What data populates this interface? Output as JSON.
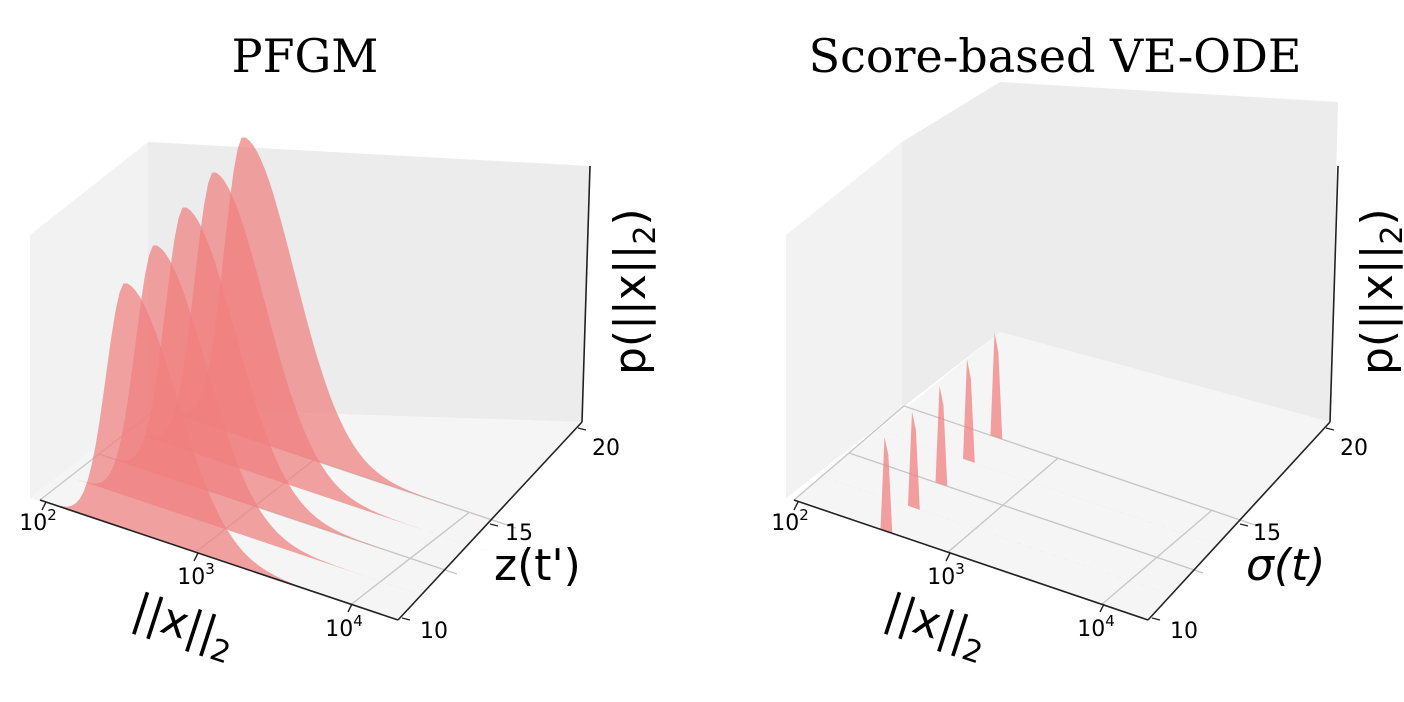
{
  "chart_data": [
    {
      "type": "area",
      "title": "PFGM",
      "xlabel": "||x||2",
      "ylabel": "z(t')",
      "zlabel": "p(||x||2)",
      "x_scale": "log",
      "x_ticks": [
        "10^2",
        "10^3",
        "10^4"
      ],
      "y_ticks": [
        "10",
        "15",
        "20"
      ],
      "ylim": [
        10,
        20
      ],
      "series": [
        {
          "depth": 10,
          "peak_log10_x": 2.55,
          "relative_peak": 0.82
        },
        {
          "depth": 12.5,
          "peak_log10_x": 2.55,
          "relative_peak": 0.87
        },
        {
          "depth": 15,
          "peak_log10_x": 2.55,
          "relative_peak": 0.92
        },
        {
          "depth": 17.5,
          "peak_log10_x": 2.55,
          "relative_peak": 0.96
        },
        {
          "depth": 20,
          "peak_log10_x": 2.55,
          "relative_peak": 1.0
        }
      ],
      "color": "#f08080",
      "grid": true
    },
    {
      "type": "area",
      "title": "Score-based VE-ODE",
      "xlabel": "||x||2",
      "ylabel": "σ(t)",
      "zlabel": "p(||x||2)",
      "x_scale": "log",
      "x_ticks": [
        "10^2",
        "10^3",
        "10^4"
      ],
      "y_ticks": [
        "10",
        "15",
        "20"
      ],
      "ylim": [
        10,
        20
      ],
      "series": [
        {
          "depth": 10,
          "peak_log10_x": 2.6,
          "relative_peak": 0.88
        },
        {
          "depth": 12.5,
          "peak_log10_x": 2.6,
          "relative_peak": 0.9
        },
        {
          "depth": 15,
          "peak_log10_x": 2.6,
          "relative_peak": 0.92
        },
        {
          "depth": 17.5,
          "peak_log10_x": 2.6,
          "relative_peak": 0.95
        },
        {
          "depth": 20,
          "peak_log10_x": 2.6,
          "relative_peak": 0.98
        }
      ],
      "color": "#f08080",
      "grid": true
    }
  ]
}
